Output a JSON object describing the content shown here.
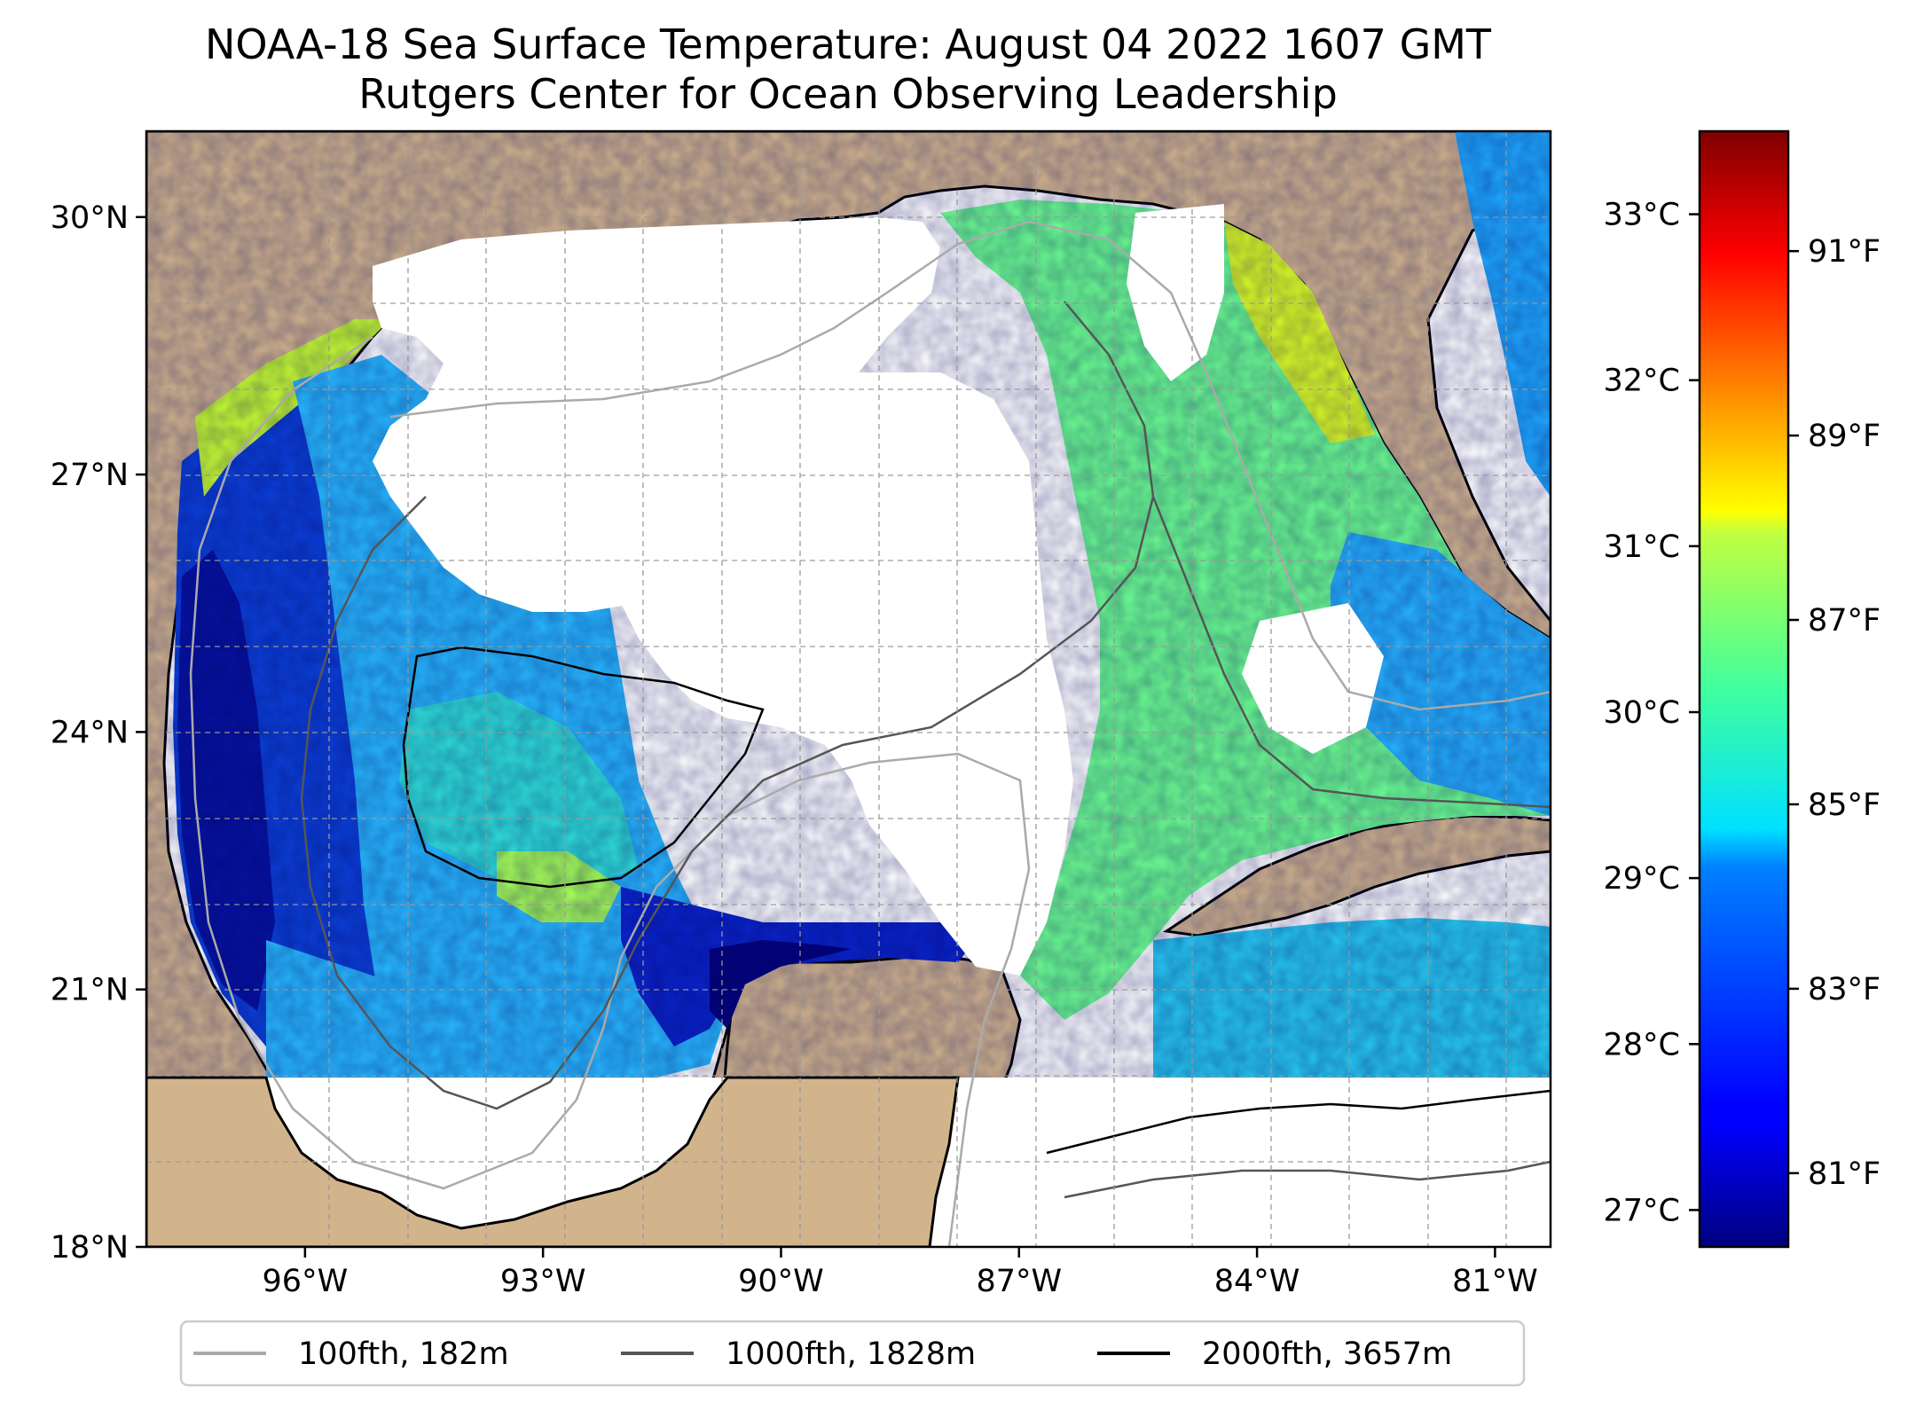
{
  "title": {
    "line1": "NOAA-18 Sea Surface Temperature: August 04 2022 1607 GMT",
    "line2": "Rutgers Center for Ocean Observing Leadership"
  },
  "map": {
    "lon_range": [
      -98.0,
      -80.3
    ],
    "lat_range": [
      18.0,
      31.0
    ],
    "land_color": "#d2b48c",
    "no_data_color": "#ffffff",
    "gridlines": true,
    "lon_ticks": [
      {
        "value": -96,
        "label": "96°W"
      },
      {
        "value": -93,
        "label": "93°W"
      },
      {
        "value": -90,
        "label": "90°W"
      },
      {
        "value": -87,
        "label": "87°W"
      },
      {
        "value": -84,
        "label": "84°W"
      },
      {
        "value": -81,
        "label": "81°W"
      }
    ],
    "lat_ticks": [
      {
        "value": 18,
        "label": "18°N"
      },
      {
        "value": 21,
        "label": "21°N"
      },
      {
        "value": 24,
        "label": "24°N"
      },
      {
        "value": 27,
        "label": "27°N"
      },
      {
        "value": 30,
        "label": "30°N"
      }
    ]
  },
  "colorbar": {
    "colormap": "jet",
    "range_f": [
      80.2,
      92.3
    ],
    "fahrenheit_ticks": [
      {
        "value": 81,
        "label": "81°F"
      },
      {
        "value": 83,
        "label": "83°F"
      },
      {
        "value": 85,
        "label": "85°F"
      },
      {
        "value": 87,
        "label": "87°F"
      },
      {
        "value": 89,
        "label": "89°F"
      },
      {
        "value": 91,
        "label": "91°F"
      }
    ],
    "celsius_ticks": [
      {
        "value": 27,
        "label": "27°C"
      },
      {
        "value": 28,
        "label": "28°C"
      },
      {
        "value": 29,
        "label": "29°C"
      },
      {
        "value": 30,
        "label": "30°C"
      },
      {
        "value": 31,
        "label": "31°C"
      },
      {
        "value": 32,
        "label": "32°C"
      },
      {
        "value": 33,
        "label": "33°C"
      }
    ]
  },
  "legend": {
    "items": [
      {
        "label": "100fth, 182m",
        "color": "#aaaaaa"
      },
      {
        "label": "1000fth, 1828m",
        "color": "#555555"
      },
      {
        "label": "2000fth, 3657m",
        "color": "#000000"
      }
    ]
  }
}
